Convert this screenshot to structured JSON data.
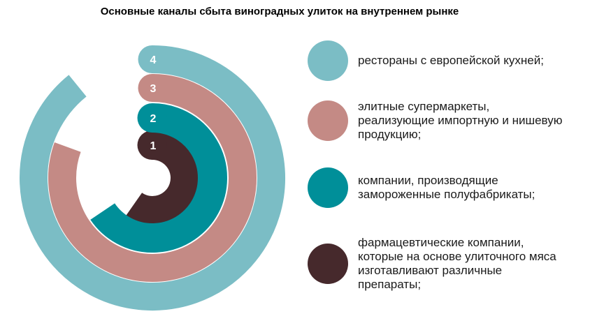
{
  "title": "Основные каналы сбыта виноградных улиток на внутреннем рынке",
  "chart_data": {
    "type": "radial-bar",
    "series": [
      {
        "rank": "1",
        "label": "фармацевтические компании,\nкоторые на основе улиточного мяса\nизготавливают различные\nпрепараты;",
        "color": "#46292c",
        "sweep_deg": 215
      },
      {
        "rank": "2",
        "label": "компании, производящие\nзамороженные полуфабрикаты;",
        "color": "#008f99",
        "sweep_deg": 236
      },
      {
        "rank": "3",
        "label": "элитные супермаркеты,\nреализующие импортную и нишевую\nпродукцию;",
        "color": "#c48a85",
        "sweep_deg": 290
      },
      {
        "rank": "4",
        "label": "рестораны с европейской кухней;",
        "color": "#7bbdc5",
        "sweep_deg": 321
      }
    ]
  }
}
